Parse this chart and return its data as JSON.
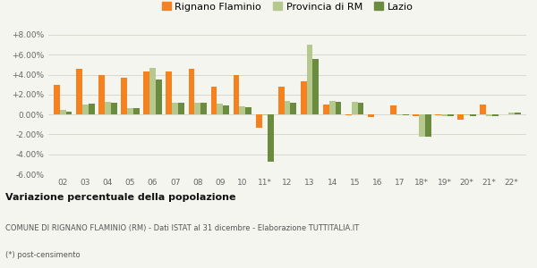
{
  "years": [
    "02",
    "03",
    "04",
    "05",
    "06",
    "07",
    "08",
    "09",
    "10",
    "11*",
    "12",
    "13",
    "14",
    "15",
    "16",
    "17",
    "18*",
    "19*",
    "20*",
    "21*",
    "22*"
  ],
  "rignano": [
    3.0,
    4.6,
    4.0,
    3.7,
    4.3,
    4.3,
    4.6,
    2.8,
    4.0,
    -1.3,
    2.8,
    3.3,
    1.0,
    -0.1,
    -0.3,
    0.9,
    -0.15,
    -0.1,
    -0.5,
    1.0,
    0.05
  ],
  "provincia": [
    0.5,
    1.0,
    1.3,
    0.6,
    4.7,
    1.2,
    1.2,
    1.1,
    0.8,
    -0.1,
    1.4,
    7.0,
    1.4,
    1.3,
    0.05,
    -0.05,
    -2.2,
    -0.15,
    -0.1,
    -0.15,
    0.2
  ],
  "lazio": [
    0.3,
    1.1,
    1.2,
    0.6,
    3.5,
    1.2,
    1.2,
    0.9,
    0.7,
    -4.7,
    1.2,
    5.6,
    1.3,
    1.2,
    0.05,
    -0.05,
    -2.2,
    -0.2,
    -0.15,
    -0.15,
    0.15
  ],
  "color_rignano": "#f5821f",
  "color_provincia": "#b5c98e",
  "color_lazio": "#6b8c3e",
  "ylim": [
    -6.0,
    8.0
  ],
  "yticks": [
    -6.0,
    -4.0,
    -2.0,
    0.0,
    2.0,
    4.0,
    6.0,
    8.0
  ],
  "title_bold": "Variazione percentuale della popolazione",
  "subtitle": "COMUNE DI RIGNANO FLAMINIO (RM) - Dati ISTAT al 31 dicembre - Elaborazione TUTTITALIA.IT",
  "footnote": "(*) post-censimento",
  "bg_color": "#f5f5f0",
  "grid_color": "#d8d8cc"
}
